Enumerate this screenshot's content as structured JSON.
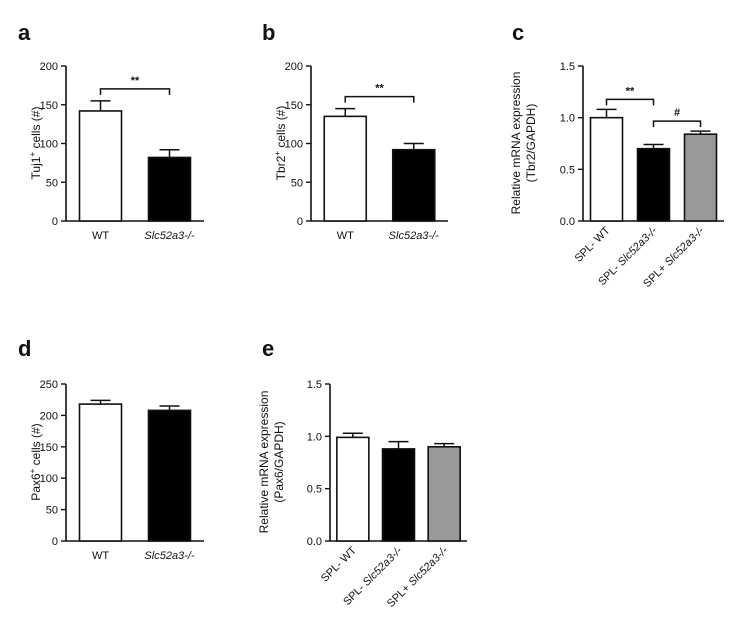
{
  "chart_data": [
    {
      "panel": "a",
      "type": "bar",
      "ylabel": "Tuj1+ cells (#)",
      "ylabel_parts": {
        "pre": "Tuj1",
        "sup": "+",
        "post": " cells (#)"
      },
      "ylim": [
        0,
        200
      ],
      "yticks": [
        0,
        50,
        100,
        150,
        200
      ],
      "categories": [
        "WT",
        "Slc52a3-/-"
      ],
      "values": [
        142,
        82
      ],
      "errors": [
        13,
        10
      ],
      "colors": [
        "#ffffff",
        "#000000"
      ],
      "annotations": [
        {
          "text": "**",
          "from": 0,
          "to": 1
        }
      ]
    },
    {
      "panel": "b",
      "type": "bar",
      "ylabel": "Tbr2+ cells (#)",
      "ylabel_parts": {
        "pre": "Tbr2",
        "sup": "+",
        "post": " cells (#)"
      },
      "ylim": [
        0,
        200
      ],
      "yticks": [
        0,
        50,
        100,
        150,
        200
      ],
      "categories": [
        "WT",
        "Slc52a3-/-"
      ],
      "values": [
        135,
        92
      ],
      "errors": [
        10,
        8
      ],
      "colors": [
        "#ffffff",
        "#000000"
      ],
      "annotations": [
        {
          "text": "**",
          "from": 0,
          "to": 1
        }
      ]
    },
    {
      "panel": "c",
      "type": "bar",
      "ylabel_lines": [
        "Relative mRNA expression",
        "(Tbr2/GAPDH)"
      ],
      "ylim": [
        0,
        1.5
      ],
      "yticks": [
        "0.0",
        "0.5",
        "1.0",
        "1.5"
      ],
      "categories": [
        "SPL- WT",
        "SPL- Slc52a3-/-",
        "SPL+ Slc52a3-/-"
      ],
      "values": [
        1.0,
        0.7,
        0.84
      ],
      "errors": [
        0.08,
        0.04,
        0.03
      ],
      "colors": [
        "#ffffff",
        "#000000",
        "#999999"
      ],
      "annotations": [
        {
          "text": "**",
          "from": 0,
          "to": 1
        },
        {
          "text": "#",
          "from": 1,
          "to": 2
        }
      ]
    },
    {
      "panel": "d",
      "type": "bar",
      "ylabel": "Pax6+ cells (#)",
      "ylabel_parts": {
        "pre": "Pax6",
        "sup": "+",
        "post": " cells (#)"
      },
      "ylim": [
        0,
        250
      ],
      "yticks": [
        0,
        50,
        100,
        150,
        200,
        250
      ],
      "categories": [
        "WT",
        "Slc52a3-/-"
      ],
      "values": [
        218,
        208
      ],
      "errors": [
        6,
        7
      ],
      "colors": [
        "#ffffff",
        "#000000"
      ],
      "annotations": []
    },
    {
      "panel": "e",
      "type": "bar",
      "ylabel_lines": [
        "Relative mRNA expression",
        "(Pax6/GAPDH)"
      ],
      "ylim": [
        0,
        1.5
      ],
      "yticks": [
        "0.0",
        "0.5",
        "1.0",
        "1.5"
      ],
      "categories": [
        "SPL- WT",
        "SPL- Slc52a3-/-",
        "SPL+ Slc52a3-/-"
      ],
      "values": [
        0.99,
        0.88,
        0.9
      ],
      "errors": [
        0.04,
        0.07,
        0.03
      ],
      "colors": [
        "#ffffff",
        "#000000",
        "#999999"
      ],
      "annotations": []
    }
  ]
}
